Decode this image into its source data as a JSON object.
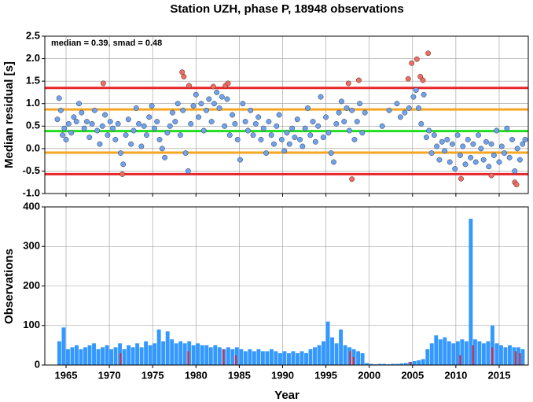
{
  "chart_data": [
    {
      "type": "scatter",
      "title": "Station UZH, phase P, 18948 observations",
      "ylabel": "Median residual [s]",
      "annotation": "median = 0.39, smad = 0.48",
      "xlim": [
        1962.55,
        2018.36
      ],
      "xticks": [
        1965,
        1970,
        1975,
        1980,
        1985,
        1990,
        1995,
        2000,
        2005,
        2010,
        2015
      ],
      "ylim": [
        -1.0,
        2.5
      ],
      "yticks": [
        {
          "value": -1,
          "label": "-1.0"
        },
        -0.5,
        {
          "value": 0,
          "label": "0.0"
        },
        0.5,
        {
          "value": 1,
          "label": "1.0"
        },
        1.5,
        {
          "value": 2,
          "label": "2.0"
        },
        2.5
      ],
      "grid": true,
      "hlines": [
        {
          "value": 1.35,
          "color": "#e8262a"
        },
        {
          "value": -0.57,
          "color": "#e8262a"
        },
        {
          "value": 0.87,
          "color": "#f5a623"
        },
        {
          "value": -0.09,
          "color": "#f5a623"
        },
        {
          "value": 0.39,
          "color": "#22dd22"
        }
      ],
      "series": [
        {
          "color": "#6fa3f0",
          "x": [
            1964.0,
            1964.2,
            1964.4,
            1964.6,
            1964.8,
            1965.0,
            1965.3,
            1965.6,
            1965.9,
            1966.2,
            1966.5,
            1966.8,
            1967.1,
            1967.4,
            1967.7,
            1968.0,
            1968.3,
            1968.6,
            1968.9,
            1969.2,
            1969.5,
            1969.8,
            1970.1,
            1970.4,
            1970.7,
            1971.0,
            1971.3,
            1971.6,
            1971.9,
            1972.2,
            1972.5,
            1972.8,
            1973.1,
            1973.4,
            1973.7,
            1974.0,
            1974.3,
            1974.6,
            1974.9,
            1975.2,
            1975.5,
            1975.8,
            1976.1,
            1976.4,
            1976.7,
            1977.0,
            1977.3,
            1977.6,
            1977.9,
            1978.2,
            1978.5,
            1978.8,
            1979.1,
            1979.4,
            1979.7,
            1980.0,
            1980.3,
            1980.6,
            1980.9,
            1981.2,
            1981.5,
            1981.8,
            1982.1,
            1982.4,
            1982.7,
            1983.0,
            1983.3,
            1983.6,
            1983.9,
            1984.2,
            1984.5,
            1984.8,
            1985.1,
            1985.4,
            1985.7,
            1986.0,
            1986.3,
            1986.6,
            1986.9,
            1987.2,
            1987.5,
            1987.8,
            1988.1,
            1988.4,
            1988.7,
            1989.0,
            1989.3,
            1989.6,
            1989.9,
            1990.2,
            1990.5,
            1990.8,
            1991.1,
            1991.4,
            1991.7,
            1992.0,
            1992.3,
            1992.6,
            1992.9,
            1993.2,
            1993.5,
            1993.8,
            1994.1,
            1994.4,
            1994.7,
            1995.0,
            1995.3,
            1995.6,
            1995.9,
            1996.2,
            1996.5,
            1996.8,
            1997.1,
            1997.4,
            1997.7,
            1998.0,
            1998.3,
            1998.6,
            1998.9,
            1999.2,
            1999.5,
            2001.5,
            2002.3,
            2003.2,
            2003.6,
            2004.1,
            2004.6,
            2005.1,
            2005.4,
            2005.7,
            2006.0,
            2006.3,
            2006.6,
            2006.9,
            2007.2,
            2007.5,
            2007.8,
            2008.1,
            2008.4,
            2008.7,
            2009.0,
            2009.3,
            2009.6,
            2009.9,
            2010.2,
            2010.5,
            2010.8,
            2011.1,
            2011.4,
            2011.7,
            2012.0,
            2012.3,
            2012.6,
            2012.9,
            2013.2,
            2013.5,
            2013.8,
            2014.1,
            2014.4,
            2014.7,
            2015.0,
            2015.3,
            2015.6,
            2015.9,
            2016.2,
            2016.5,
            2016.8,
            2017.1,
            2017.4,
            2017.7,
            2018.0
          ],
          "values": [
            0.65,
            1.12,
            0.85,
            0.3,
            0.45,
            0.2,
            0.55,
            0.35,
            0.7,
            0.6,
            1.0,
            0.8,
            0.45,
            0.6,
            0.25,
            0.55,
            0.85,
            0.4,
            0.1,
            0.5,
            0.75,
            0.3,
            0.6,
            0.45,
            0.2,
            0.55,
            -0.1,
            -0.35,
            0.3,
            0.65,
            0.1,
            0.4,
            0.9,
            0.55,
            0.05,
            0.5,
            0.3,
            0.7,
            0.95,
            0.45,
            0.6,
            0.2,
            0.0,
            -0.2,
            0.35,
            0.5,
            0.8,
            0.6,
            1.0,
            0.3,
            0.85,
            -0.1,
            -0.5,
            0.55,
            0.95,
            1.2,
            0.7,
            1.0,
            0.4,
            0.85,
            1.1,
            0.6,
            1.0,
            1.25,
            0.9,
            1.15,
            0.5,
            1.1,
            0.3,
            0.75,
            0.55,
            0.2,
            -0.25,
            1.0,
            0.6,
            0.4,
            0.85,
            0.3,
            0.55,
            0.7,
            0.2,
            0.45,
            -0.1,
            0.6,
            0.3,
            0.1,
            0.5,
            0.75,
            0.2,
            -0.05,
            0.35,
            0.1,
            0.45,
            0.25,
            0.65,
            0.2,
            0.05,
            0.45,
            0.9,
            0.3,
            0.6,
            0.15,
            0.5,
            1.15,
            0.25,
            0.7,
            0.35,
            -0.1,
            -0.3,
            0.55,
            0.8,
            1.05,
            0.6,
            0.9,
            0.4,
            0.85,
            0.2,
            0.6,
            1.0,
            0.35,
            0.8,
            0.5,
            0.85,
            1.0,
            0.7,
            0.8,
            0.9,
            1.15,
            1.3,
            0.9,
            0.55,
            1.2,
            0.25,
            0.4,
            -0.1,
            0.3,
            0.05,
            -0.25,
            0.15,
            -0.05,
            0.2,
            -0.3,
            0.1,
            -0.45,
            0.3,
            -0.15,
            0.05,
            -0.35,
            0.2,
            -0.2,
            0.1,
            -0.3,
            0.3,
            0.0,
            -0.25,
            0.15,
            -0.4,
            0.1,
            -0.15,
            0.4,
            -0.3,
            0.05,
            -0.1,
            0.45,
            -0.2,
            0.2,
            -0.5,
            0.0,
            -0.25,
            0.1,
            0.2
          ]
        },
        {
          "color": "#f26b5e",
          "x": [
            1969.3,
            1971.5,
            1978.4,
            1978.6,
            1979.2,
            1982.0,
            1983.4,
            1983.7,
            1997.6,
            1998.0,
            1998.8,
            2004.5,
            2004.9,
            2005.5,
            2005.9,
            2006.2,
            2006.8,
            2010.6,
            2014.1,
            2016.8,
            2017.0
          ],
          "values": [
            1.45,
            -0.57,
            1.7,
            1.6,
            1.4,
            1.38,
            1.4,
            1.45,
            1.45,
            -0.68,
            1.52,
            1.55,
            1.9,
            1.99,
            1.6,
            1.52,
            2.12,
            -0.67,
            -0.6,
            -0.75,
            -0.8
          ]
        }
      ]
    },
    {
      "type": "histogram",
      "ylabel": "Observations",
      "xlabel": "Year",
      "xlim": [
        1962.55,
        2018.36
      ],
      "xticks": [
        1965,
        1970,
        1975,
        1980,
        1985,
        1990,
        1995,
        2000,
        2005,
        2010,
        2015
      ],
      "ylim": [
        0,
        400
      ],
      "yticks": [
        0,
        100,
        200,
        300,
        400
      ],
      "grid": true,
      "color": "#3399ff",
      "bins": [
        1963.5,
        1964,
        1964.5,
        1965,
        1965.5,
        1966,
        1966.5,
        1967,
        1967.5,
        1968,
        1968.5,
        1969,
        1969.5,
        1970,
        1970.5,
        1971,
        1971.5,
        1972,
        1972.5,
        1973,
        1973.5,
        1974,
        1974.5,
        1975,
        1975.5,
        1976,
        1976.5,
        1977,
        1977.5,
        1978,
        1978.5,
        1979,
        1979.5,
        1980,
        1980.5,
        1981,
        1981.5,
        1982,
        1982.5,
        1983,
        1983.5,
        1984,
        1984.5,
        1985,
        1985.5,
        1986,
        1986.5,
        1987,
        1987.5,
        1988,
        1988.5,
        1989,
        1989.5,
        1990,
        1990.5,
        1991,
        1991.5,
        1992,
        1992.5,
        1993,
        1993.5,
        1994,
        1994.5,
        1995,
        1995.5,
        1996,
        1996.5,
        1997,
        1997.5,
        1998,
        1998.5,
        1999,
        1999.5,
        2000,
        2000.5,
        2001,
        2001.5,
        2002,
        2002.5,
        2003,
        2003.5,
        2004,
        2004.5,
        2005,
        2005.5,
        2006,
        2006.5,
        2007,
        2007.5,
        2008,
        2008.5,
        2009,
        2009.5,
        2010,
        2010.5,
        2011,
        2011.5,
        2012,
        2012.5,
        2013,
        2013.5,
        2014,
        2014.5,
        2015,
        2015.5,
        2016,
        2016.5,
        2017,
        2017.5,
        2018
      ],
      "values": [
        0,
        60,
        95,
        40,
        45,
        50,
        40,
        45,
        50,
        55,
        40,
        45,
        50,
        40,
        45,
        55,
        40,
        50,
        45,
        55,
        45,
        60,
        50,
        55,
        90,
        60,
        85,
        65,
        55,
        60,
        55,
        60,
        50,
        55,
        50,
        50,
        45,
        50,
        45,
        40,
        45,
        40,
        45,
        40,
        35,
        40,
        35,
        40,
        35,
        35,
        40,
        35,
        30,
        35,
        30,
        35,
        30,
        35,
        30,
        40,
        45,
        50,
        60,
        110,
        70,
        55,
        90,
        50,
        45,
        40,
        35,
        30,
        5,
        3,
        2,
        3,
        3,
        2,
        3,
        3,
        4,
        5,
        8,
        10,
        12,
        15,
        40,
        55,
        75,
        65,
        70,
        60,
        55,
        60,
        65,
        60,
        370,
        65,
        60,
        55,
        60,
        100,
        55,
        50,
        45,
        50,
        45,
        45,
        40
      ],
      "highlights": {
        "color": "#e8262a",
        "x": [
          1971.3,
          1979.1,
          1983.2,
          1984.6,
          1997.8,
          1998.2,
          2004.8,
          2010.5,
          2012.0,
          2014.2,
          2016.9,
          2017.4
        ],
        "values": [
          30,
          35,
          40,
          25,
          35,
          20,
          8,
          25,
          50,
          45,
          35,
          30
        ]
      }
    }
  ]
}
